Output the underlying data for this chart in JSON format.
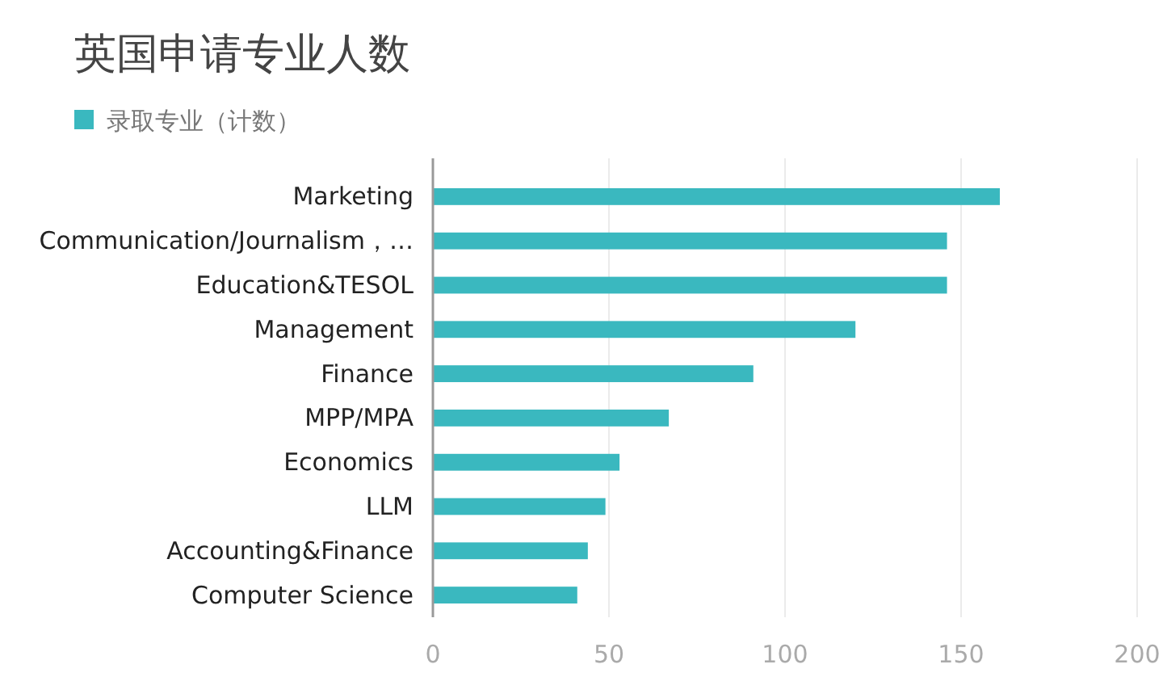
{
  "chart_data": {
    "type": "bar",
    "orientation": "horizontal",
    "title": "英国申请专业人数",
    "categories": [
      "Marketing",
      "Communication/Journalism，…",
      "Education&TESOL",
      "Management",
      "Finance",
      "MPP/MPA",
      "Economics",
      "LLM",
      "Accounting&Finance",
      "Computer Science"
    ],
    "series": [
      {
        "name": "录取专业（计数）",
        "color": "#3ab8bf",
        "values": [
          161,
          146,
          146,
          120,
          91,
          67,
          53,
          49,
          44,
          41
        ]
      }
    ],
    "xlim": [
      0,
      200
    ],
    "xticks": [
      0,
      50,
      100,
      150,
      200
    ],
    "grid": "x",
    "legend": "top left"
  }
}
